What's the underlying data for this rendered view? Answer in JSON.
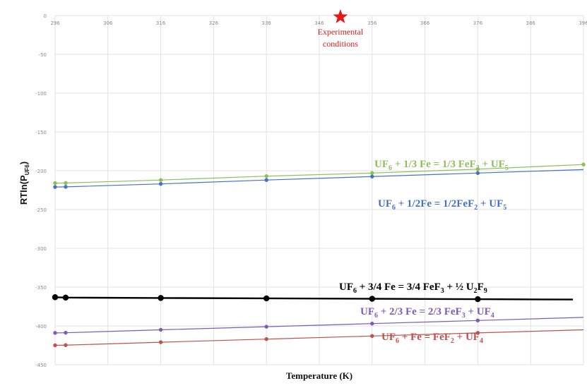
{
  "chart_data": {
    "type": "line",
    "xlabel": "Temperature (K)",
    "ylabel_main": "RTln(P",
    "ylabel_sub": "UF6",
    "ylabel_close": ")",
    "x_ticks": [
      296,
      306,
      316,
      326,
      336,
      346,
      356,
      366,
      376,
      386,
      396
    ],
    "x_tick_labels": [
      "296",
      "306",
      "316",
      "326",
      "336",
      "346",
      "356",
      "366",
      "376",
      "386",
      "396"
    ],
    "y_ticks": [
      0,
      -50,
      -100,
      -150,
      -200,
      -250,
      -300,
      -350,
      -400,
      -450
    ],
    "y_tick_labels": [
      "0",
      "-50",
      "-100",
      "-150",
      "-200",
      "-250",
      "-300",
      "-350",
      "-400",
      "-450"
    ],
    "xlim": [
      296,
      396
    ],
    "ylim": [
      -450,
      0
    ],
    "grid": true,
    "annotation": {
      "x": 350,
      "y": 0,
      "symbol": "star",
      "color": "#e11919",
      "line1": "Experimental",
      "line2": "conditions"
    },
    "series": [
      {
        "color": "#8cbf5a",
        "label": [
          {
            "t": "UF"
          },
          {
            "t": "6",
            "sub": true
          },
          {
            "t": " + 1/3 Fe = 1/3 FeF"
          },
          {
            "t": "3",
            "sub": true
          },
          {
            "t": " + UF"
          },
          {
            "t": "5",
            "sub": true
          }
        ],
        "x": [
          296,
          298,
          316,
          336,
          356,
          376,
          396
        ],
        "y": [
          -216,
          -215.8,
          -212,
          -207,
          -203,
          -198,
          -192
        ],
        "line_end": [
          396,
          -192
        ],
        "marker_size": 2.5,
        "line_width": 1.2
      },
      {
        "color": "#4472c4",
        "label": [
          {
            "t": "UF"
          },
          {
            "t": "6",
            "sub": true
          },
          {
            "t": " + 1/2Fe = 1/2FeF"
          },
          {
            "t": "2",
            "sub": true
          },
          {
            "t": " + UF"
          },
          {
            "t": "5",
            "sub": true
          }
        ],
        "x": [
          296,
          298,
          316,
          336,
          356,
          376
        ],
        "y": [
          -221,
          -220.8,
          -217,
          -212,
          -207.5,
          -203
        ],
        "line_end": [
          396,
          -198.5
        ],
        "marker_size": 2.5,
        "line_width": 1.2
      },
      {
        "color": "#000000",
        "label": [
          {
            "t": "UF"
          },
          {
            "t": "6",
            "sub": true
          },
          {
            "t": " + 3/4 Fe = 3/4 FeF"
          },
          {
            "t": "3",
            "sub": true
          },
          {
            "t": " + ½ U"
          },
          {
            "t": "2",
            "sub": true
          },
          {
            "t": "F"
          },
          {
            "t": "9",
            "sub": true
          }
        ],
        "x": [
          296,
          298,
          316,
          336,
          356,
          376
        ],
        "y": [
          -363,
          -363.5,
          -364,
          -364.5,
          -365,
          -365.5
        ],
        "line_end": [
          394,
          -366
        ],
        "marker_size": 4,
        "line_width": 2.4
      },
      {
        "color": "#7e5bb5",
        "label": [
          {
            "t": "UF"
          },
          {
            "t": "6",
            "sub": true
          },
          {
            "t": " + 2/3 Fe = 2/3 FeF"
          },
          {
            "t": "3",
            "sub": true
          },
          {
            "t": " + UF"
          },
          {
            "t": "4",
            "sub": true
          }
        ],
        "x": [
          296,
          298,
          316,
          336,
          356,
          376
        ],
        "y": [
          -409,
          -408.8,
          -405,
          -401,
          -397,
          -393
        ],
        "line_end": [
          396,
          -389
        ],
        "marker_size": 2.5,
        "line_width": 1.2
      },
      {
        "color": "#c0504d",
        "label": [
          {
            "t": "UF"
          },
          {
            "t": "6",
            "sub": true
          },
          {
            "t": " + Fe = FeF"
          },
          {
            "t": "2",
            "sub": true
          },
          {
            "t": " +  UF"
          },
          {
            "t": "4",
            "sub": true
          }
        ],
        "x": [
          296,
          298,
          316,
          336,
          356,
          376
        ],
        "y": [
          -425,
          -424.8,
          -421,
          -417,
          -413,
          -409
        ],
        "line_end": [
          396,
          -405
        ],
        "marker_size": 2.5,
        "line_width": 1.2
      }
    ]
  }
}
